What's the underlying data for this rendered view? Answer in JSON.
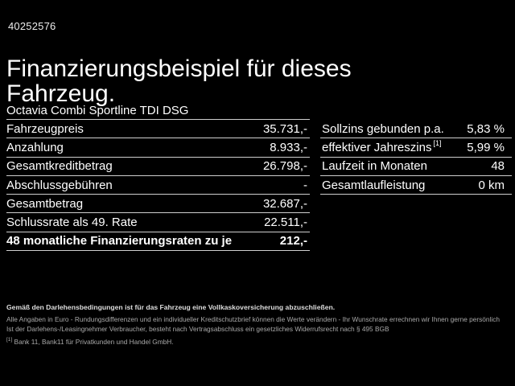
{
  "colors": {
    "background": "#000000",
    "text": "#ffffff",
    "divider": "#cfcfcf",
    "fine_print": "#a9a9a9",
    "fine_print_bold": "#dedede"
  },
  "header": {
    "vehicle_id": "40252576",
    "title": "Finanzierungsbeispiel für dieses Fahrzeug.",
    "subtitle": "Octavia Combi Sportline TDI DSG"
  },
  "financing_table": {
    "rows": [
      {
        "label": "Fahrzeugpreis",
        "value": "35.731,-",
        "bold": false
      },
      {
        "label": "Anzahlung",
        "value": "8.933,-",
        "bold": false
      },
      {
        "label": "Gesamtkreditbetrag",
        "value": "26.798,-",
        "bold": false
      },
      {
        "label": "Abschlussgebühren",
        "value": "-",
        "bold": false
      },
      {
        "label": "Gesamtbetrag",
        "value": "32.687,-",
        "bold": false
      },
      {
        "label": "Schlussrate als 49. Rate",
        "value": "22.511,-",
        "bold": false
      },
      {
        "label": "48 monatliche Finanzierungsraten zu je",
        "value": "212,-",
        "bold": true
      }
    ]
  },
  "conditions_table": {
    "rows": [
      {
        "label": "Sollzins gebunden p.a.",
        "value": "5,83 %",
        "bold": false
      },
      {
        "label": "effektiver Jahreszins",
        "sup": "[1]",
        "value": "5,99 %",
        "bold": false
      },
      {
        "label": "Laufzeit in Monaten",
        "value": "48",
        "bold": false
      },
      {
        "label": "Gesamtlaufleistung",
        "value": "0 km",
        "bold": false
      }
    ]
  },
  "footer": {
    "insurance_note": "Gemäß den Darlehensbedingungen ist für das Fahrzeug eine Vollkaskoversicherung abzuschließen.",
    "notes": [
      "Alle Angaben in Euro - Rundungsdifferenzen und ein individueller Kreditschutzbrief können die Werte verändern - Ihr Wunschrate errechnen wir Ihnen gerne persönlich",
      "Ist der Darlehens-/Leasingnehmer Verbraucher, besteht nach Vertragsabschluss ein gesetzliches Widerrufsrecht nach § 495 BGB"
    ],
    "footnote_marker": "[1]",
    "footnote_text": "Bank 11, Bank11 für Privatkunden und Handel GmbH."
  }
}
